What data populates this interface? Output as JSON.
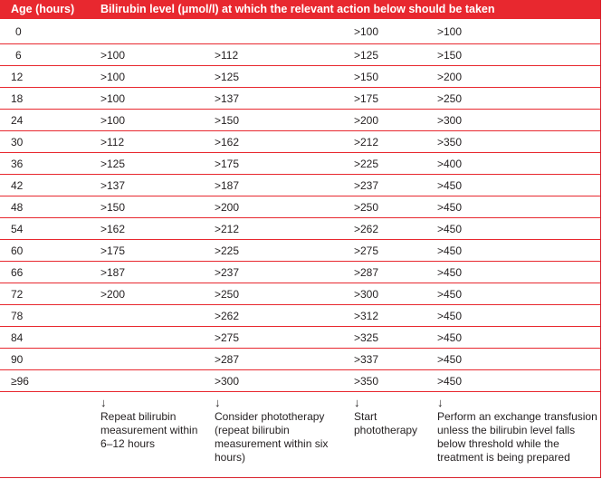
{
  "header": {
    "age": "Age (hours)",
    "level": "Bilirubin level (μmol/l) at which the relevant action below should be taken"
  },
  "rows": [
    {
      "age": "0",
      "c1": "",
      "c2": "",
      "c3": ">100",
      "c4": ">100"
    },
    {
      "age": "6",
      "c1": ">100",
      "c2": ">112",
      "c3": ">125",
      "c4": ">150"
    },
    {
      "age": "12",
      "c1": ">100",
      "c2": ">125",
      "c3": ">150",
      "c4": ">200"
    },
    {
      "age": "18",
      "c1": ">100",
      "c2": ">137",
      "c3": ">175",
      "c4": ">250"
    },
    {
      "age": "24",
      "c1": ">100",
      "c2": ">150",
      "c3": ">200",
      "c4": ">300"
    },
    {
      "age": "30",
      "c1": ">112",
      "c2": ">162",
      "c3": ">212",
      "c4": ">350"
    },
    {
      "age": "36",
      "c1": ">125",
      "c2": ">175",
      "c3": ">225",
      "c4": ">400"
    },
    {
      "age": "42",
      "c1": ">137",
      "c2": ">187",
      "c3": ">237",
      "c4": ">450"
    },
    {
      "age": "48",
      "c1": ">150",
      "c2": ">200",
      "c3": ">250",
      "c4": ">450"
    },
    {
      "age": "54",
      "c1": ">162",
      "c2": ">212",
      "c3": ">262",
      "c4": ">450"
    },
    {
      "age": "60",
      "c1": ">175",
      "c2": ">225",
      "c3": ">275",
      "c4": ">450"
    },
    {
      "age": "66",
      "c1": ">187",
      "c2": ">237",
      "c3": ">287",
      "c4": ">450"
    },
    {
      "age": "72",
      "c1": ">200",
      "c2": ">250",
      "c3": ">300",
      "c4": ">450"
    },
    {
      "age": "78",
      "c1": "",
      "c2": ">262",
      "c3": ">312",
      "c4": ">450"
    },
    {
      "age": "84",
      "c1": "",
      "c2": ">275",
      "c3": ">325",
      "c4": ">450"
    },
    {
      "age": "90",
      "c1": "",
      "c2": ">287",
      "c3": ">337",
      "c4": ">450"
    },
    {
      "age": "≥96",
      "c1": "",
      "c2": ">300",
      "c3": ">350",
      "c4": ">450"
    }
  ],
  "footer": {
    "arrow": "↓",
    "action1": [
      "Repeat bilirubin",
      "measurement within",
      "6–12 hours"
    ],
    "action2": [
      "Consider phototherapy",
      "(repeat bilirubin",
      "measurement within six",
      "hours)"
    ],
    "action3": [
      "Start",
      "phototherapy"
    ],
    "action4": [
      "Perform an exchange transfusion",
      "unless the bilirubin level falls",
      "below threshold while the",
      "treatment is being prepared"
    ]
  },
  "colors": {
    "accent": "#e8282f",
    "text": "#231f20"
  }
}
